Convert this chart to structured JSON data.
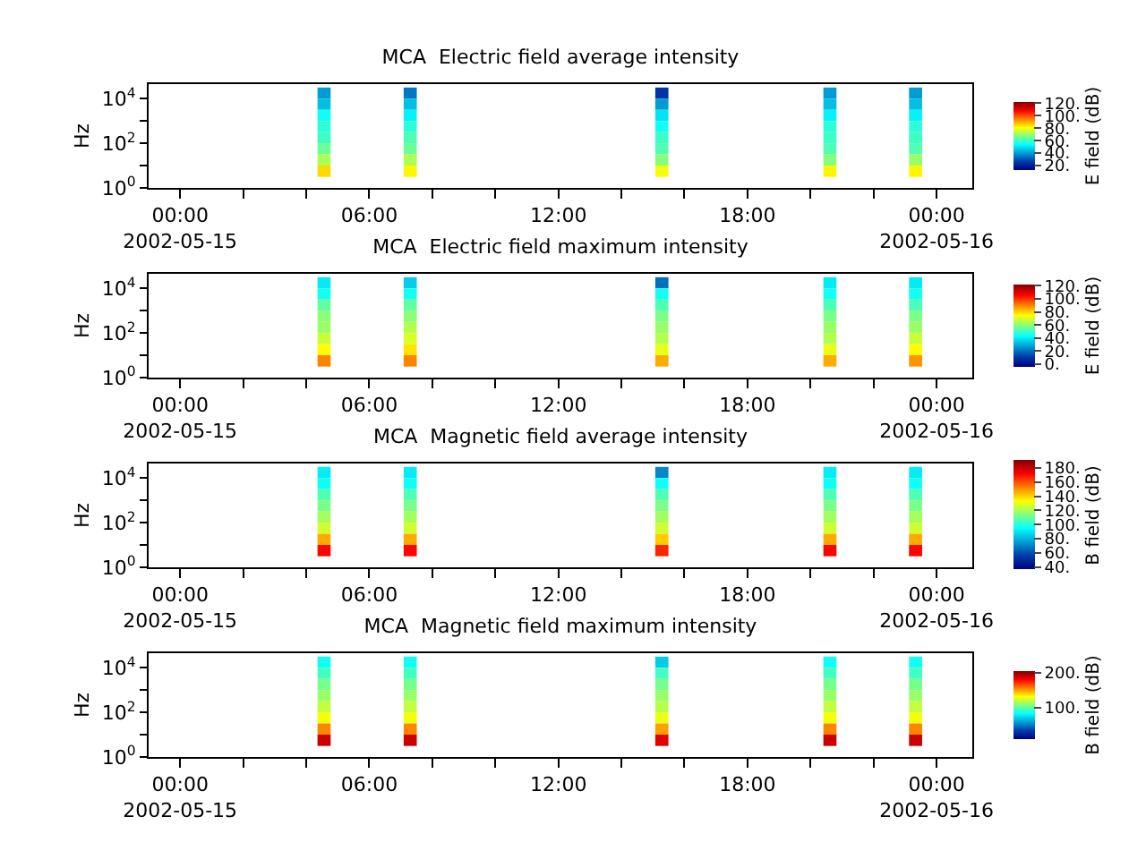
{
  "chart_data": [
    {
      "type": "heatmap",
      "title": "MCA  Electric field average intensity",
      "ylabel": "Hz",
      "clabel": "E field (dB)",
      "log": "y",
      "x": [
        "2002-05-15T04:09",
        "2002-05-15T04:34",
        "2002-05-15T04:59",
        "2002-05-15T06:53",
        "2002-05-15T07:18",
        "2002-05-15T07:43",
        "2002-05-15T14:52",
        "2002-05-15T15:17",
        "2002-05-15T15:42",
        "2002-05-15T20:12",
        "2002-05-15T20:37",
        "2002-05-15T21:02",
        "2002-05-15T22:55",
        "2002-05-15T23:20",
        "2002-05-15T23:45"
      ],
      "y": [
        17783,
        5623,
        1778,
        562,
        178,
        56,
        18,
        5.6
      ],
      "xlim": [
        "2002-05-14T23:00",
        "2002-05-16T01:08"
      ],
      "xticks": [
        {
          "value": "2002-05-15T00:00",
          "label": "00:00\n2002-05-15"
        },
        {
          "value": "2002-05-15T02:00",
          "label": null
        },
        {
          "value": "2002-05-15T04:00",
          "label": null
        },
        {
          "value": "2002-05-15T06:00",
          "label": "06:00"
        },
        {
          "value": "2002-05-15T08:00",
          "label": null
        },
        {
          "value": "2002-05-15T10:00",
          "label": null
        },
        {
          "value": "2002-05-15T12:00",
          "label": "12:00"
        },
        {
          "value": "2002-05-15T14:00",
          "label": null
        },
        {
          "value": "2002-05-15T16:00",
          "label": null
        },
        {
          "value": "2002-05-15T18:00",
          "label": "18:00"
        },
        {
          "value": "2002-05-15T20:00",
          "label": null
        },
        {
          "value": "2002-05-15T22:00",
          "label": null
        },
        {
          "value": "2002-05-16T00:00",
          "label": "00:00\n2002-05-16"
        }
      ],
      "ylim": [
        1,
        45000
      ],
      "yticks": [
        {
          "value": 1,
          "label": "10$^{0}$"
        },
        {
          "value": 10,
          "label": null
        },
        {
          "value": 100,
          "label": "10$^{2}$"
        },
        {
          "value": 1000,
          "label": null
        },
        {
          "value": 10000,
          "label": "10$^{4}$"
        }
      ],
      "clim": [
        13,
        122
      ],
      "cticks": [
        {
          "value": 20,
          "label": "20."
        },
        {
          "value": 40,
          "label": "40."
        },
        {
          "value": 60,
          "label": "60."
        },
        {
          "value": 80,
          "label": "80."
        },
        {
          "value": 100,
          "label": "100."
        },
        {
          "value": 120,
          "label": "120."
        }
      ],
      "cells": [
        [
          null,
          40,
          null,
          null,
          35,
          null,
          null,
          25,
          null,
          null,
          40,
          null,
          null,
          40,
          null
        ],
        [
          null,
          45,
          null,
          null,
          45,
          null,
          null,
          40,
          null,
          null,
          45,
          null,
          null,
          45,
          null
        ],
        [
          null,
          55,
          null,
          null,
          52,
          null,
          null,
          50,
          null,
          null,
          52,
          null,
          null,
          52,
          null
        ],
        [
          null,
          58,
          null,
          null,
          58,
          null,
          null,
          55,
          null,
          null,
          58,
          null,
          null,
          58,
          null
        ],
        [
          null,
          60,
          null,
          null,
          62,
          null,
          null,
          60,
          null,
          null,
          60,
          null,
          null,
          60,
          null
        ],
        [
          null,
          65,
          null,
          null,
          65,
          null,
          null,
          62,
          null,
          null,
          62,
          null,
          null,
          62,
          null
        ],
        [
          null,
          72,
          null,
          null,
          72,
          null,
          null,
          68,
          null,
          null,
          68,
          null,
          null,
          70,
          null
        ],
        [
          null,
          85,
          null,
          null,
          82,
          null,
          null,
          80,
          null,
          null,
          82,
          null,
          null,
          82,
          null
        ]
      ]
    },
    {
      "type": "heatmap",
      "title": "MCA  Electric field maximum intensity",
      "ylabel": "Hz",
      "clabel": "E field (dB)",
      "log": "y",
      "x": [
        "2002-05-15T04:09",
        "2002-05-15T04:34",
        "2002-05-15T04:59",
        "2002-05-15T06:53",
        "2002-05-15T07:18",
        "2002-05-15T07:43",
        "2002-05-15T14:52",
        "2002-05-15T15:17",
        "2002-05-15T15:42",
        "2002-05-15T20:12",
        "2002-05-15T20:37",
        "2002-05-15T21:02",
        "2002-05-15T22:55",
        "2002-05-15T23:20",
        "2002-05-15T23:45"
      ],
      "y": [
        17783,
        5623,
        1778,
        562,
        178,
        56,
        18,
        5.6
      ],
      "xlim": [
        "2002-05-14T23:00",
        "2002-05-16T01:08"
      ],
      "xticks": [
        {
          "value": "2002-05-15T00:00",
          "label": "00:00\n2002-05-15"
        },
        {
          "value": "2002-05-15T02:00",
          "label": null
        },
        {
          "value": "2002-05-15T04:00",
          "label": null
        },
        {
          "value": "2002-05-15T06:00",
          "label": "06:00"
        },
        {
          "value": "2002-05-15T08:00",
          "label": null
        },
        {
          "value": "2002-05-15T10:00",
          "label": null
        },
        {
          "value": "2002-05-15T12:00",
          "label": "12:00"
        },
        {
          "value": "2002-05-15T14:00",
          "label": null
        },
        {
          "value": "2002-05-15T16:00",
          "label": null
        },
        {
          "value": "2002-05-15T18:00",
          "label": "18:00"
        },
        {
          "value": "2002-05-15T20:00",
          "label": null
        },
        {
          "value": "2002-05-15T22:00",
          "label": null
        },
        {
          "value": "2002-05-16T00:00",
          "label": "00:00\n2002-05-16"
        }
      ],
      "ylim": [
        1,
        45000
      ],
      "yticks": [
        {
          "value": 1,
          "label": "10$^{0}$"
        },
        {
          "value": 10,
          "label": null
        },
        {
          "value": 100,
          "label": "10$^{2}$"
        },
        {
          "value": 1000,
          "label": null
        },
        {
          "value": 10000,
          "label": "10$^{4}$"
        }
      ],
      "clim": [
        -4,
        122
      ],
      "cticks": [
        {
          "value": 0,
          "label": "0."
        },
        {
          "value": 20,
          "label": "20."
        },
        {
          "value": 40,
          "label": "40."
        },
        {
          "value": 60,
          "label": "60."
        },
        {
          "value": 80,
          "label": "80."
        },
        {
          "value": 100,
          "label": "100."
        },
        {
          "value": 120,
          "label": "120."
        }
      ],
      "cells": [
        [
          null,
          40,
          null,
          null,
          35,
          null,
          null,
          20,
          null,
          null,
          40,
          null,
          null,
          40,
          null
        ],
        [
          null,
          45,
          null,
          null,
          45,
          null,
          null,
          45,
          null,
          null,
          45,
          null,
          null,
          45,
          null
        ],
        [
          null,
          55,
          null,
          null,
          55,
          null,
          null,
          52,
          null,
          null,
          52,
          null,
          null,
          52,
          null
        ],
        [
          null,
          60,
          null,
          null,
          60,
          null,
          null,
          58,
          null,
          null,
          58,
          null,
          null,
          58,
          null
        ],
        [
          null,
          62,
          null,
          null,
          65,
          null,
          null,
          62,
          null,
          null,
          62,
          null,
          null,
          62,
          null
        ],
        [
          null,
          68,
          null,
          null,
          70,
          null,
          null,
          65,
          null,
          null,
          65,
          null,
          null,
          68,
          null
        ],
        [
          null,
          75,
          null,
          null,
          78,
          null,
          null,
          72,
          null,
          null,
          72,
          null,
          null,
          75,
          null
        ],
        [
          null,
          90,
          null,
          null,
          90,
          null,
          null,
          85,
          null,
          null,
          85,
          null,
          null,
          88,
          null
        ]
      ]
    },
    {
      "type": "heatmap",
      "title": "MCA  Magnetic field average intensity",
      "ylabel": "Hz",
      "clabel": "B field (dB)",
      "log": "y",
      "x": [
        "2002-05-15T04:09",
        "2002-05-15T04:34",
        "2002-05-15T04:59",
        "2002-05-15T06:53",
        "2002-05-15T07:18",
        "2002-05-15T07:43",
        "2002-05-15T14:52",
        "2002-05-15T15:17",
        "2002-05-15T15:42",
        "2002-05-15T20:12",
        "2002-05-15T20:37",
        "2002-05-15T21:02",
        "2002-05-15T22:55",
        "2002-05-15T23:20",
        "2002-05-15T23:45"
      ],
      "y": [
        17783,
        5623,
        1778,
        562,
        178,
        56,
        18,
        5.6
      ],
      "xlim": [
        "2002-05-14T23:00",
        "2002-05-16T01:08"
      ],
      "xticks": [
        {
          "value": "2002-05-15T00:00",
          "label": "00:00\n2002-05-15"
        },
        {
          "value": "2002-05-15T02:00",
          "label": null
        },
        {
          "value": "2002-05-15T04:00",
          "label": null
        },
        {
          "value": "2002-05-15T06:00",
          "label": "06:00"
        },
        {
          "value": "2002-05-15T08:00",
          "label": null
        },
        {
          "value": "2002-05-15T10:00",
          "label": null
        },
        {
          "value": "2002-05-15T12:00",
          "label": "12:00"
        },
        {
          "value": "2002-05-15T14:00",
          "label": null
        },
        {
          "value": "2002-05-15T16:00",
          "label": null
        },
        {
          "value": "2002-05-15T18:00",
          "label": "18:00"
        },
        {
          "value": "2002-05-15T20:00",
          "label": null
        },
        {
          "value": "2002-05-15T22:00",
          "label": null
        },
        {
          "value": "2002-05-16T00:00",
          "label": "00:00\n2002-05-16"
        }
      ],
      "ylim": [
        1,
        45000
      ],
      "yticks": [
        {
          "value": 1,
          "label": "10$^{0}$"
        },
        {
          "value": 10,
          "label": null
        },
        {
          "value": 100,
          "label": "10$^{2}$"
        },
        {
          "value": 1000,
          "label": null
        },
        {
          "value": 10000,
          "label": "10$^{4}$"
        }
      ],
      "clim": [
        36,
        190
      ],
      "cticks": [
        {
          "value": 40,
          "label": "40."
        },
        {
          "value": 60,
          "label": "60."
        },
        {
          "value": 80,
          "label": "80."
        },
        {
          "value": 100,
          "label": "100."
        },
        {
          "value": 120,
          "label": "120."
        },
        {
          "value": 140,
          "label": "140."
        },
        {
          "value": 160,
          "label": "160."
        },
        {
          "value": 180,
          "label": "180."
        }
      ],
      "cells": [
        [
          null,
          90,
          null,
          null,
          90,
          null,
          null,
          70,
          null,
          null,
          90,
          null,
          null,
          90,
          null
        ],
        [
          null,
          95,
          null,
          null,
          95,
          null,
          null,
          95,
          null,
          null,
          95,
          null,
          null,
          95,
          null
        ],
        [
          null,
          105,
          null,
          null,
          105,
          null,
          null,
          105,
          null,
          null,
          105,
          null,
          null,
          105,
          null
        ],
        [
          null,
          112,
          null,
          null,
          112,
          null,
          null,
          112,
          null,
          null,
          112,
          null,
          null,
          112,
          null
        ],
        [
          null,
          118,
          null,
          null,
          118,
          null,
          null,
          118,
          null,
          null,
          118,
          null,
          null,
          118,
          null
        ],
        [
          null,
          125,
          null,
          null,
          125,
          null,
          null,
          125,
          null,
          null,
          125,
          null,
          null,
          125,
          null
        ],
        [
          null,
          145,
          null,
          null,
          145,
          null,
          null,
          140,
          null,
          null,
          145,
          null,
          null,
          145,
          null
        ],
        [
          null,
          170,
          null,
          null,
          170,
          null,
          null,
          165,
          null,
          null,
          170,
          null,
          null,
          170,
          null
        ]
      ]
    },
    {
      "type": "heatmap",
      "title": "MCA  Magnetic field maximum intensity",
      "ylabel": "Hz",
      "clabel": "B field (dB)",
      "log": "y",
      "x": [
        "2002-05-15T04:09",
        "2002-05-15T04:34",
        "2002-05-15T04:59",
        "2002-05-15T06:53",
        "2002-05-15T07:18",
        "2002-05-15T07:43",
        "2002-05-15T14:52",
        "2002-05-15T15:17",
        "2002-05-15T15:42",
        "2002-05-15T20:12",
        "2002-05-15T20:37",
        "2002-05-15T21:02",
        "2002-05-15T22:55",
        "2002-05-15T23:20",
        "2002-05-15T23:45"
      ],
      "y": [
        17783,
        5623,
        1778,
        562,
        178,
        56,
        18,
        5.6
      ],
      "xlim": [
        "2002-05-14T23:00",
        "2002-05-16T01:08"
      ],
      "xticks": [
        {
          "value": "2002-05-15T00:00",
          "label": "00:00\n2002-05-15"
        },
        {
          "value": "2002-05-15T02:00",
          "label": null
        },
        {
          "value": "2002-05-15T04:00",
          "label": null
        },
        {
          "value": "2002-05-15T06:00",
          "label": "06:00"
        },
        {
          "value": "2002-05-15T08:00",
          "label": null
        },
        {
          "value": "2002-05-15T10:00",
          "label": null
        },
        {
          "value": "2002-05-15T12:00",
          "label": "12:00"
        },
        {
          "value": "2002-05-15T14:00",
          "label": null
        },
        {
          "value": "2002-05-15T16:00",
          "label": null
        },
        {
          "value": "2002-05-15T18:00",
          "label": "18:00"
        },
        {
          "value": "2002-05-15T20:00",
          "label": null
        },
        {
          "value": "2002-05-15T22:00",
          "label": null
        },
        {
          "value": "2002-05-16T00:00",
          "label": "00:00\n2002-05-16"
        }
      ],
      "ylim": [
        1,
        45000
      ],
      "yticks": [
        {
          "value": 1,
          "label": "10$^{0}$"
        },
        {
          "value": 10,
          "label": null
        },
        {
          "value": 100,
          "label": "10$^{2}$"
        },
        {
          "value": 1000,
          "label": null
        },
        {
          "value": 10000,
          "label": "10$^{4}$"
        }
      ],
      "clim": [
        10,
        205
      ],
      "cticks": [
        {
          "value": 100,
          "label": "100."
        },
        {
          "value": 200,
          "label": "200."
        }
      ],
      "cells": [
        [
          null,
          85,
          null,
          null,
          85,
          null,
          null,
          70,
          null,
          null,
          85,
          null,
          null,
          85,
          null
        ],
        [
          null,
          95,
          null,
          null,
          95,
          null,
          null,
          95,
          null,
          null,
          95,
          null,
          null,
          95,
          null
        ],
        [
          null,
          105,
          null,
          null,
          105,
          null,
          null,
          105,
          null,
          null,
          105,
          null,
          null,
          105,
          null
        ],
        [
          null,
          112,
          null,
          null,
          112,
          null,
          null,
          112,
          null,
          null,
          112,
          null,
          null,
          112,
          null
        ],
        [
          null,
          120,
          null,
          null,
          120,
          null,
          null,
          118,
          null,
          null,
          120,
          null,
          null,
          120,
          null
        ],
        [
          null,
          130,
          null,
          null,
          130,
          null,
          null,
          128,
          null,
          null,
          130,
          null,
          null,
          130,
          null
        ],
        [
          null,
          155,
          null,
          null,
          155,
          null,
          null,
          150,
          null,
          null,
          155,
          null,
          null,
          155,
          null
        ],
        [
          null,
          190,
          null,
          null,
          190,
          null,
          null,
          185,
          null,
          null,
          190,
          null,
          null,
          190,
          null
        ]
      ]
    }
  ]
}
